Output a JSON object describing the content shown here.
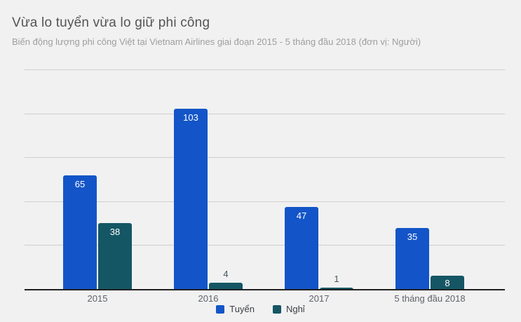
{
  "header": {
    "title": "Vừa lo tuyển vừa lo giữ phi công",
    "subtitle": "Biến động lượng phi công Việt tại Vietnam Airlines giai đoạn 2015 - 5 tháng đầu 2018 (đơn vị: Người)"
  },
  "chart_data": {
    "type": "bar",
    "title": "Vừa lo tuyển vừa lo giữ phi công",
    "subtitle": "Biến động lượng phi công Việt tại Vietnam Airlines giai đoạn 2015 - 5 tháng đầu 2018 (đơn vị: Người)",
    "categories": [
      "2015",
      "2016",
      "2017",
      "5 tháng đầu 2018"
    ],
    "series": [
      {
        "name": "Tuyển",
        "color": "#1355c8",
        "values": [
          65,
          103,
          47,
          35
        ]
      },
      {
        "name": "Nghỉ",
        "color": "#155665",
        "values": [
          38,
          4,
          1,
          8
        ]
      }
    ],
    "xlabel": "",
    "ylabel": "",
    "unit": "Người",
    "ylim": [
      0,
      125
    ],
    "grid_step": 25,
    "grid": true,
    "y_tick_labels_visible": false,
    "legend_position": "bottom"
  },
  "colors": {
    "background": "#f1f1f2",
    "gridline": "#cfcfcf",
    "axis": "#212121",
    "title": "#545454",
    "subtitle": "#9e9e9e",
    "category_label": "#5f6368",
    "value_label_inside": "#ffffff",
    "value_label_outside": "#44545c"
  }
}
